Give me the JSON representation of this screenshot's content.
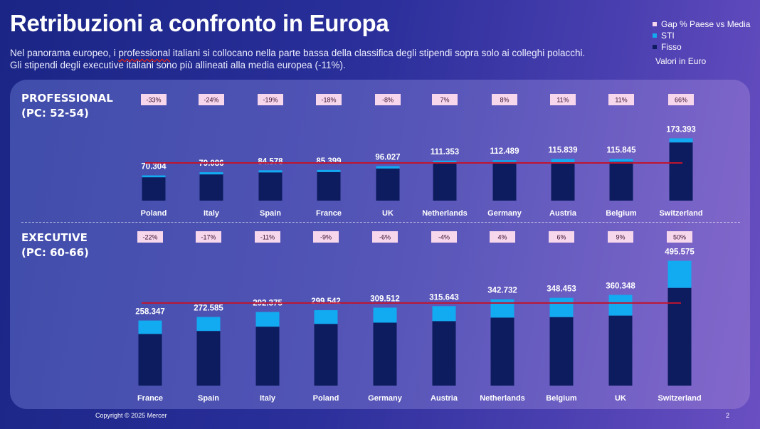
{
  "title": "Retribuzioni a confronto in Europa",
  "subtitle": {
    "line1_pre": "Nel panorama europeo, i ",
    "line1_underlined": "professional",
    "line1_post": " italiani si collocano nella parte bassa della classifica degli stipendi sopra solo ai colleghi polacchi.",
    "line2": "Gli stipendi degli executive italiani sono più allineati alla media europea (-11%)."
  },
  "legend": {
    "gap": "Gap %  Paese vs Media",
    "sti": "STI",
    "fisso": "Fisso",
    "unit": "Valori in Euro"
  },
  "colors": {
    "fisso": "#0c1c5e",
    "sti": "#12aaf0",
    "media_line": "#c0142e",
    "gap_box": "#f7d7ec",
    "gap_text": "#3a0e2e"
  },
  "professional_label": [
    "PROFESSIONAL",
    "(PC: 52-54)"
  ],
  "executive_label": [
    "EXECUTIVE",
    "(PC: 60-66)"
  ],
  "footer": {
    "copyright": "Copyright © 2025 Mercer",
    "page": "2"
  },
  "chart_data": [
    {
      "type": "bar",
      "stacked": true,
      "name": "professional",
      "categories": [
        "Poland",
        "Italy",
        "Spain",
        "France",
        "UK",
        "Netherlands",
        "Germany",
        "Austria",
        "Belgium",
        "Switzerland"
      ],
      "totals_label": [
        "70.304",
        "79.086",
        "84.578",
        "85.399",
        "96.027",
        "111.353",
        "112.489",
        "115.839",
        "115.845",
        "173.393"
      ],
      "series": [
        {
          "name": "Fisso",
          "values": [
            65000,
            73000,
            78500,
            79500,
            89500,
            106500,
            107500,
            107000,
            108000,
            162000
          ]
        },
        {
          "name": "STI",
          "values": [
            5304,
            6086,
            6078,
            5899,
            6527,
            4853,
            4989,
            8839,
            7845,
            11393
          ]
        }
      ],
      "gap": [
        "-33%",
        "-24%",
        "-19%",
        "-18%",
        "-8%",
        "7%",
        "8%",
        "11%",
        "11%",
        "66%"
      ],
      "media": 105000,
      "ylim": [
        0,
        185000
      ]
    },
    {
      "type": "bar",
      "stacked": true,
      "name": "executive",
      "categories": [
        "France",
        "Spain",
        "Italy",
        "Poland",
        "Germany",
        "Austria",
        "Netherlands",
        "Belgium",
        "UK",
        "Switzerland"
      ],
      "totals_label": [
        "258.347",
        "272.585",
        "292.375",
        "299.542",
        "309.512",
        "315.643",
        "342.732",
        "348.453",
        "360.348",
        "495.575"
      ],
      "series": [
        {
          "name": "Fisso",
          "values": [
            205000,
            217000,
            234000,
            245000,
            250000,
            256000,
            270000,
            272000,
            278000,
            388000
          ]
        },
        {
          "name": "STI",
          "values": [
            53347,
            55585,
            58375,
            54542,
            59512,
            59643,
            72732,
            76453,
            82348,
            107575
          ]
        }
      ],
      "gap": [
        "-22%",
        "-17%",
        "-11%",
        "-9%",
        "-6%",
        "-4%",
        "4%",
        "6%",
        "9%",
        "50%"
      ],
      "media": 328000,
      "ylim": [
        0,
        600000
      ]
    }
  ]
}
